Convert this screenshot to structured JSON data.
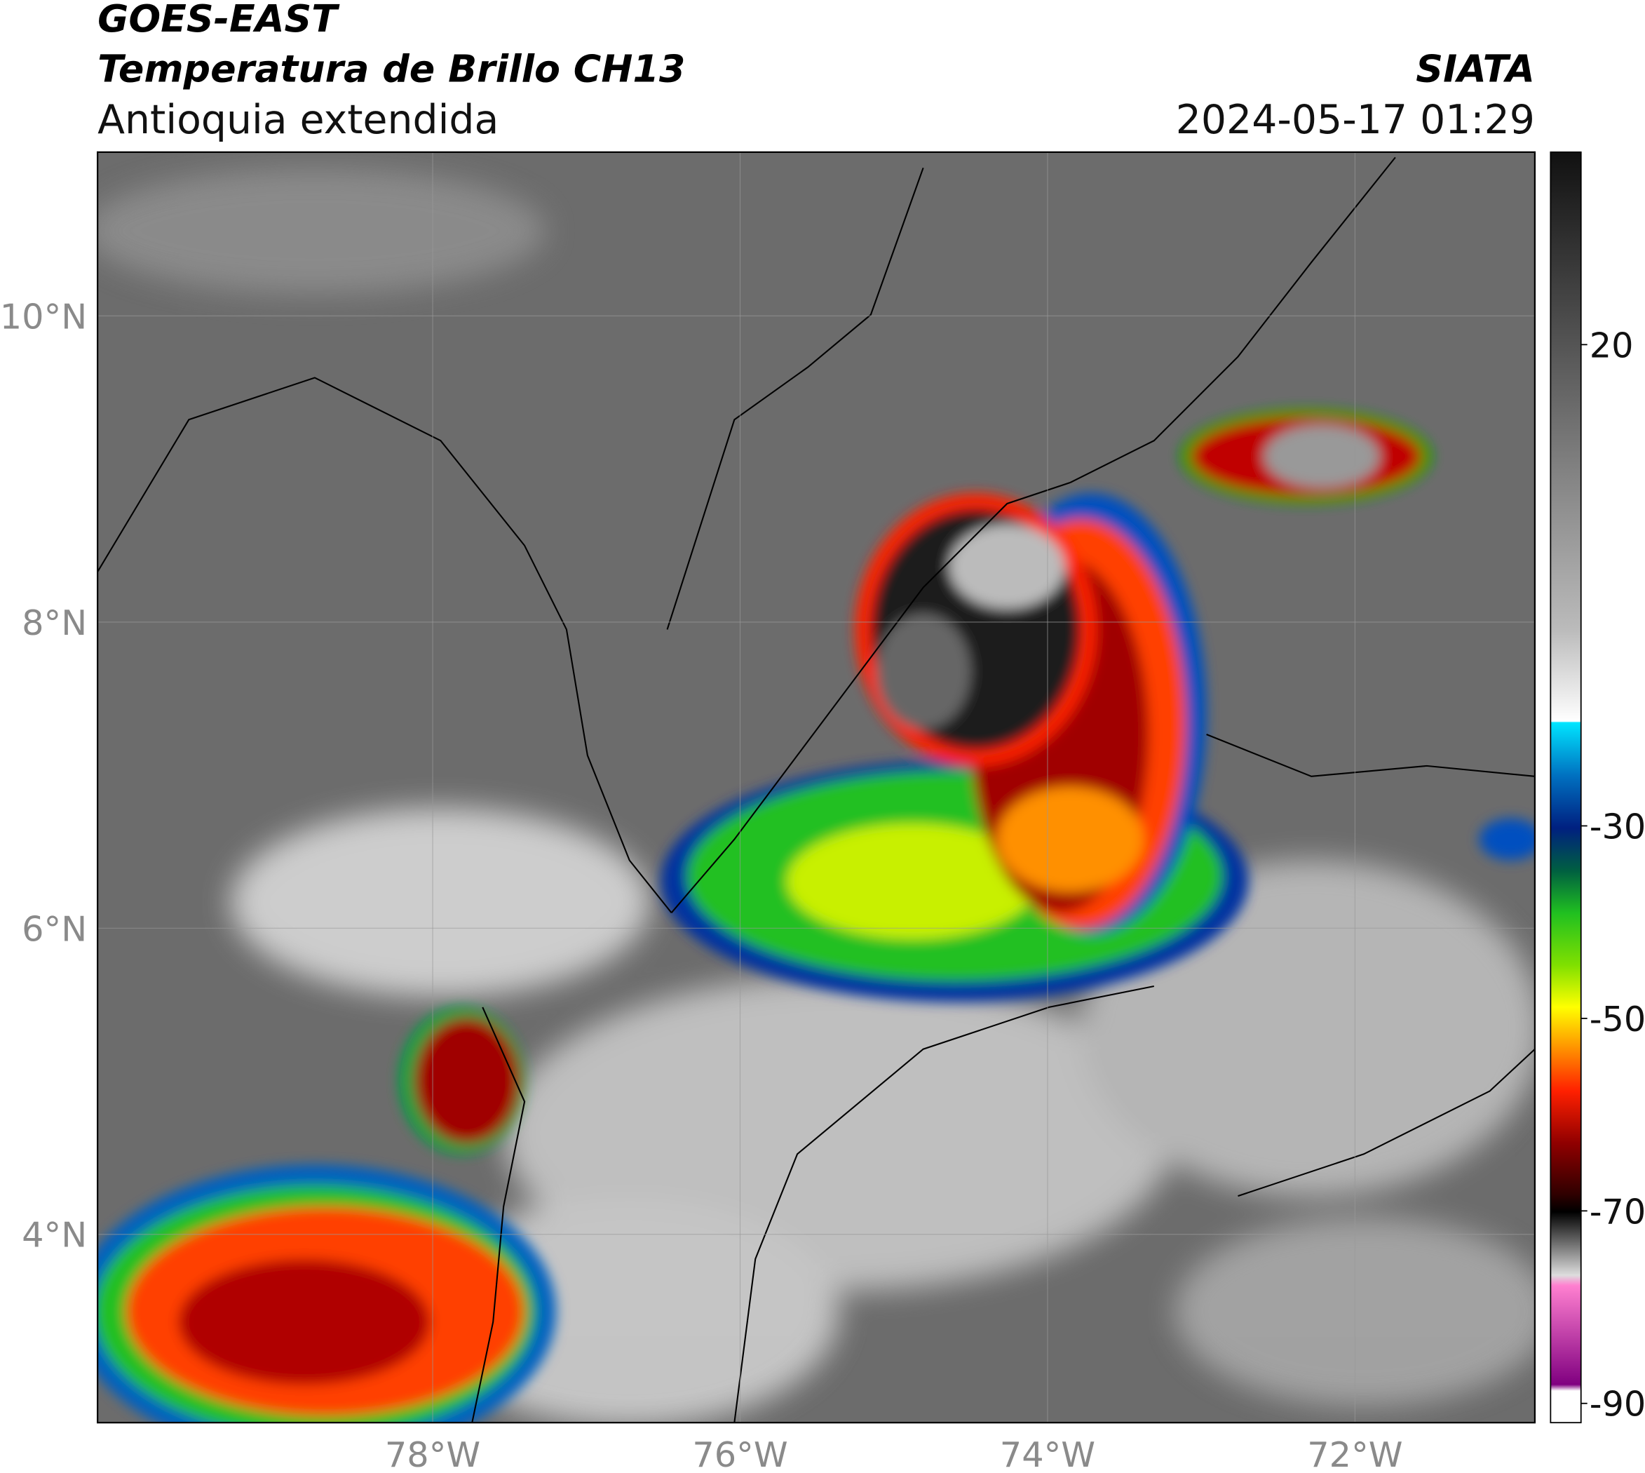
{
  "header": {
    "title": "GOES-EAST",
    "subtitle": "Temperatura de Brillo CH13",
    "region": "Antioquia extendida",
    "source": "SIATA",
    "datetime": "2024-05-17 01:29"
  },
  "map": {
    "xlim": [
      -80.18,
      -70.83
    ],
    "ylim": [
      2.77,
      11.07
    ],
    "xticks": [
      {
        "value": -78,
        "label": "78°W"
      },
      {
        "value": -76,
        "label": "76°W"
      },
      {
        "value": -74,
        "label": "74°W"
      },
      {
        "value": -72,
        "label": "72°W"
      }
    ],
    "yticks": [
      {
        "value": 10,
        "label": "10°N"
      },
      {
        "value": 8,
        "label": "8°N"
      },
      {
        "value": 6,
        "label": "6°N"
      },
      {
        "value": 4,
        "label": "4°N"
      }
    ]
  },
  "colorbar": {
    "lim": [
      -92,
      40
    ],
    "ticks": [
      20,
      -30,
      -50,
      -70,
      -90
    ]
  }
}
